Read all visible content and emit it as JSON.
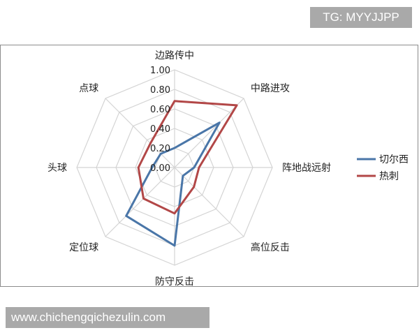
{
  "badge": {
    "text": "TG: MYYJJPP"
  },
  "watermark": {
    "text": "www.chichengqichezulin.com"
  },
  "colors": {
    "grid": "#d4d4d4",
    "frame": "#8c8c8c"
  },
  "chart_data": {
    "type": "radar",
    "axes": [
      "边路传中",
      "中路进攻",
      "阵地战远射",
      "高位反击",
      "防守反击",
      "定位球",
      "头球",
      "点球"
    ],
    "ticks": [
      "0.00",
      "0.20",
      "0.40",
      "0.60",
      "0.80",
      "1.00"
    ],
    "rlim": [
      0,
      1
    ],
    "grid": true,
    "legend": "right",
    "series": [
      {
        "name": "切尔西",
        "color": "#4a76a8",
        "values": [
          0.2,
          0.65,
          0.2,
          0.12,
          0.8,
          0.7,
          0.23,
          0.2
        ]
      },
      {
        "name": "热刺",
        "color": "#b24747",
        "values": [
          0.68,
          0.9,
          0.25,
          0.28,
          0.47,
          0.45,
          0.37,
          0.35
        ]
      }
    ]
  }
}
